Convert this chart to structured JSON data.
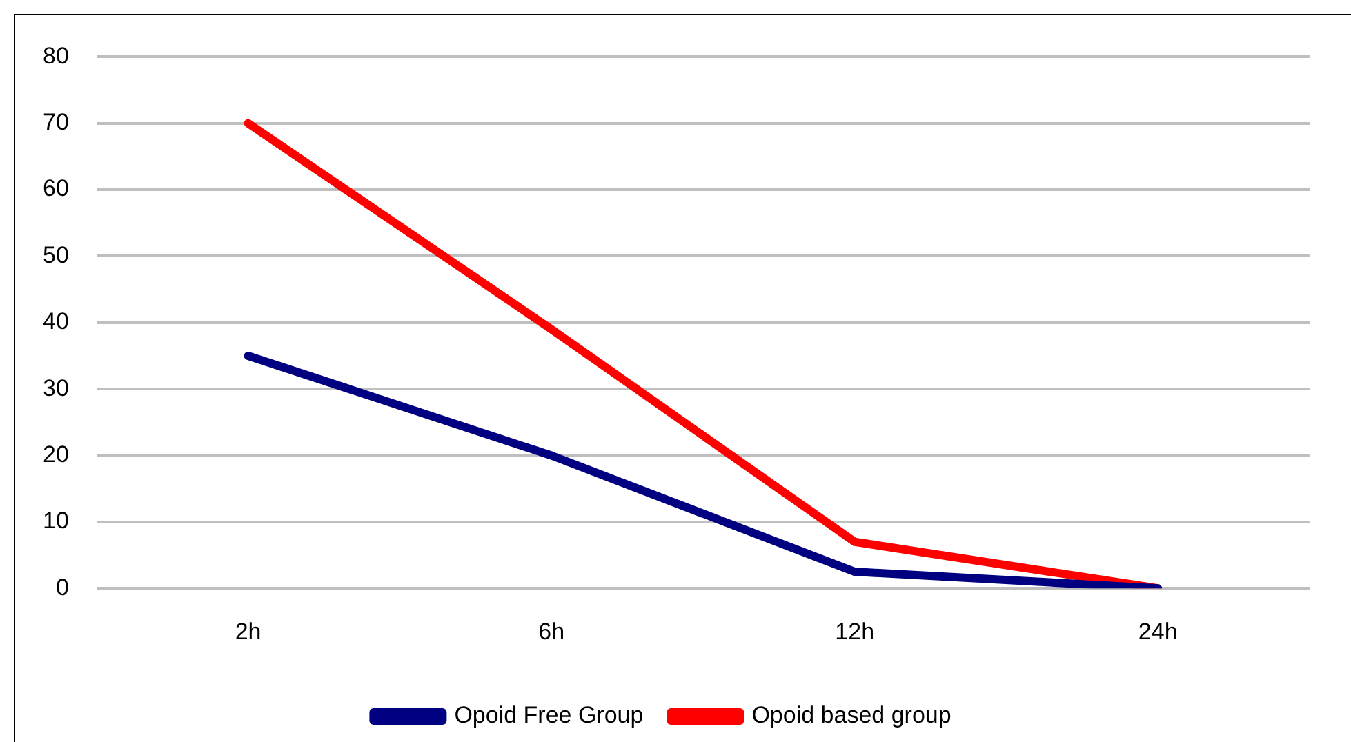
{
  "chart_data": {
    "type": "line",
    "categories": [
      "2h",
      "6h",
      "12h",
      "24h"
    ],
    "series": [
      {
        "name": "Opoid Free Group",
        "color": "#000080",
        "values": [
          35,
          20,
          2.5,
          0
        ]
      },
      {
        "name": "Opoid based group",
        "color": "#ff0000",
        "values": [
          70,
          39,
          7,
          0
        ]
      }
    ],
    "ylim": [
      0,
      80
    ],
    "yticks": [
      0,
      10,
      20,
      30,
      40,
      50,
      60,
      70,
      80
    ],
    "grid": "y",
    "legend": "bottom",
    "marker": "none",
    "line_style": "solid"
  }
}
